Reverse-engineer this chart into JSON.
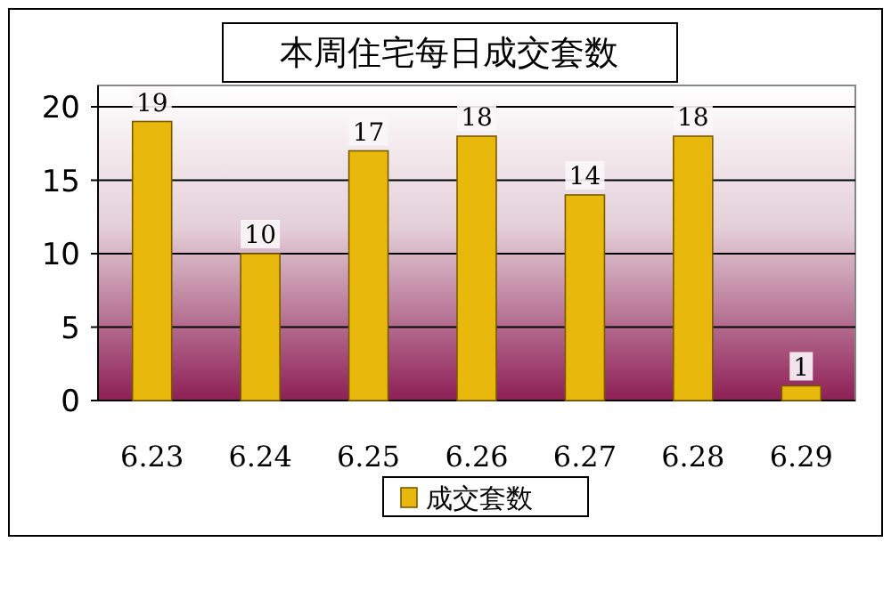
{
  "chart_data": {
    "type": "bar",
    "title": "本周住宅每日成交套数",
    "categories": [
      "6.23",
      "6.24",
      "6.25",
      "6.26",
      "6.27",
      "6.28",
      "6.29"
    ],
    "series": [
      {
        "name": "成交套数",
        "color": "#e8b80c",
        "values": [
          19,
          10,
          17,
          18,
          14,
          18,
          1
        ]
      }
    ],
    "ylim": [
      0,
      20
    ],
    "yticks": [
      0,
      5,
      10,
      15,
      20
    ],
    "grid": "y",
    "data_labels": true,
    "legend": "bottom"
  }
}
